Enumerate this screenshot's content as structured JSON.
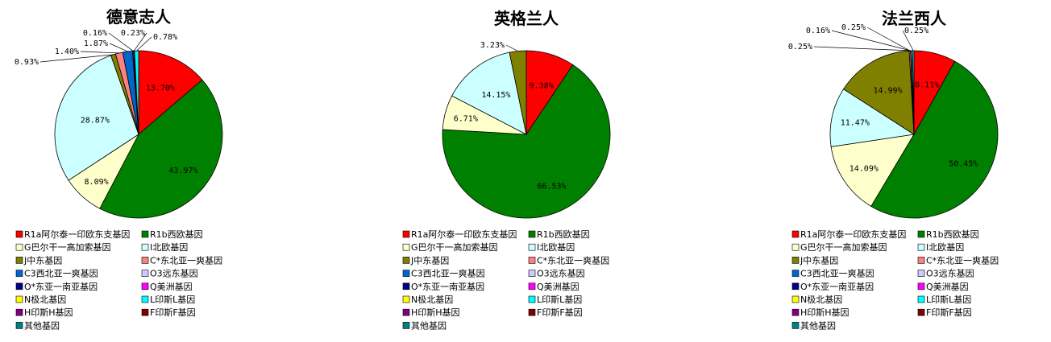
{
  "legend_labels": [
    "R1a阿尔泰一印欧东支基因",
    "R1b西欧基因",
    "G巴尔干一高加索基因",
    "I北欧基因",
    "J中东基因",
    "C*东北亚一爽基因",
    "C3西北亚一爽基因",
    "O3远东基因",
    "O*东亚一南亚基因",
    "Q美洲基因",
    "N极北基因",
    "L印斯L基因",
    "H印斯H基因",
    "F印斯F基因",
    "其他基因"
  ],
  "colors": [
    "#ff0000",
    "#008000",
    "#ffffcc",
    "#ccffff",
    "#808000",
    "#ff8080",
    "#0066cc",
    "#ccccff",
    "#000080",
    "#ff00ff",
    "#ffff00",
    "#00ffff",
    "#800080",
    "#800000",
    "#008080"
  ],
  "chart_data": [
    {
      "type": "pie",
      "title": "德意志人",
      "categories": [
        "R1a阿尔泰一印欧东支基因",
        "R1b西欧基因",
        "G巴尔干一高加索基因",
        "I北欧基因",
        "J中东基因",
        "C*东北亚一爽基因",
        "C3西北亚一爽基因",
        "O3远东基因"
      ],
      "values": [
        13.7,
        43.97,
        8.09,
        28.87,
        0.93,
        1.4,
        1.87,
        0.16,
        0.23,
        0.78
      ],
      "slice_categories": [
        "R1a阿尔泰一印欧东支基因",
        "R1b西欧基因",
        "G巴尔干一高加索基因",
        "I北欧基因",
        "J中东基因",
        "C*东北亚一爽基因",
        "C3西北亚一爽基因",
        "O3远东基因",
        "O*东亚一南亚基因",
        "L印斯L基因"
      ],
      "labels": [
        "13.70%",
        "43.97%",
        "8.09%",
        "28.87%",
        "0.93%",
        "1.40%",
        "1.87%",
        "0.16%",
        "0.23%",
        "0.78%"
      ]
    },
    {
      "type": "pie",
      "title": "英格兰人",
      "values": [
        9.38,
        66.53,
        6.71,
        14.15,
        3.23
      ],
      "slice_categories": [
        "R1a阿尔泰一印欧东支基因",
        "R1b西欧基因",
        "G巴尔干一高加索基因",
        "I北欧基因",
        "J中东基因"
      ],
      "labels": [
        "9.38%",
        "66.53%",
        "6.71%",
        "14.15%",
        "3.23%"
      ]
    },
    {
      "type": "pie",
      "title": "法兰西人",
      "values": [
        8.11,
        50.45,
        14.09,
        11.47,
        14.99,
        0.25,
        0.16,
        0.25,
        0.25
      ],
      "slice_categories": [
        "R1a阿尔泰一印欧东支基因",
        "R1b西欧基因",
        "G巴尔干一高加索基因",
        "I北欧基因",
        "J中东基因",
        "C*东北亚一爽基因",
        "C3西北亚一爽基因",
        "O3远东基因",
        "L印斯L基因"
      ],
      "labels": [
        "8.11%",
        "50.45%",
        "14.09%",
        "11.47%",
        "14.99%",
        "0.25%",
        "0.16%",
        "0.25%",
        "0.25%"
      ]
    }
  ]
}
